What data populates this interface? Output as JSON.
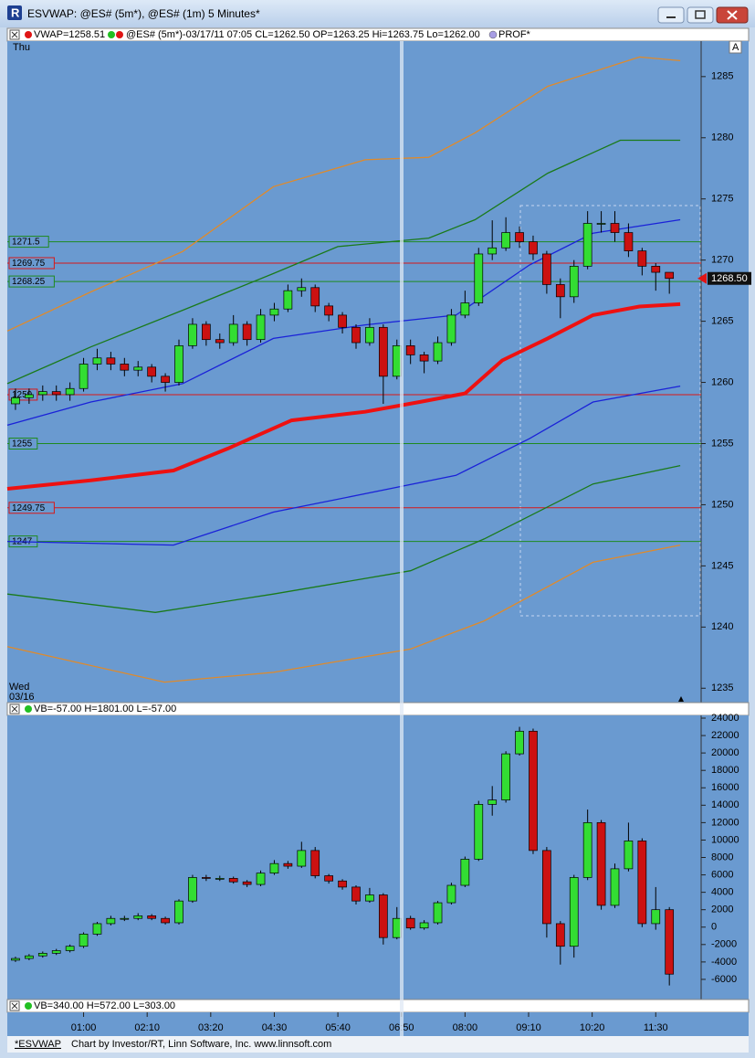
{
  "window": {
    "title": "ESVWAP: @ES# (5m*), @ES# (1m) 5 Minutes*"
  },
  "status_strip": "VB=340.00 H=572.00 L=303.00",
  "footer": {
    "study": "*ESVWAP",
    "credit": "Chart by Investor/RT, Linn Software, Inc. www.linnsoft.com"
  },
  "chart_data": [
    {
      "type": "candlestick",
      "legend": [
        "VWAP=1258.51",
        "@ES# (5m*)-03/17/11 07:05 CL=1262.50 OP=1263.25 Hi=1263.75 Lo=1262.00",
        "PROF*"
      ],
      "day_top": "Thu",
      "day_bottom": "Wed",
      "date_bottom": "03/16",
      "scale_mark": "A",
      "up_color": "#33dd33",
      "down_color": "#cc1111",
      "x": [
        -15,
        0,
        15,
        30,
        45,
        60,
        75,
        90,
        105,
        120,
        135,
        150,
        165,
        180,
        195,
        210,
        225,
        240,
        255,
        270,
        285,
        300,
        315,
        330,
        345,
        360,
        375,
        390,
        405,
        420,
        435,
        450,
        465,
        480,
        495,
        510,
        525,
        540,
        555,
        570,
        585,
        600,
        615,
        630,
        645,
        660,
        675,
        690,
        705
      ],
      "open": [
        1258.25,
        1258.75,
        1259,
        1259.25,
        1259,
        1259.5,
        1261.5,
        1262,
        1261.5,
        1261,
        1261.25,
        1260.5,
        1260,
        1263,
        1264.75,
        1263.5,
        1263.25,
        1264.75,
        1263.5,
        1265.5,
        1266,
        1267.5,
        1267.75,
        1266.25,
        1265.5,
        1264.5,
        1263.25,
        1264.5,
        1260.5,
        1263,
        1262.25,
        1261.75,
        1263.25,
        1265.5,
        1266.5,
        1270.5,
        1271,
        1272.25,
        1271.5,
        1270.5,
        1268,
        1267,
        1269.5,
        1273,
        1273,
        1272.25,
        1270.75,
        1269.5,
        1269
      ],
      "high": [
        1259.5,
        1259.5,
        1259.75,
        1259.75,
        1260,
        1262,
        1262.75,
        1262.5,
        1262,
        1261.75,
        1261.5,
        1260.75,
        1263.5,
        1265.25,
        1265,
        1264,
        1265.5,
        1265,
        1266,
        1266.5,
        1268,
        1268.5,
        1268,
        1266.5,
        1265.75,
        1264.75,
        1265.25,
        1264.75,
        1263.5,
        1263.5,
        1262.5,
        1263.75,
        1266,
        1267.5,
        1271,
        1273.25,
        1273.5,
        1272.75,
        1272,
        1270.75,
        1268.5,
        1270,
        1274,
        1274,
        1274,
        1273,
        1271,
        1269.75,
        1269
      ],
      "low": [
        1257.75,
        1258.25,
        1258.5,
        1258.5,
        1258.5,
        1259.25,
        1261,
        1261,
        1260.5,
        1260.5,
        1260,
        1259.25,
        1259.75,
        1262.75,
        1263,
        1262.75,
        1263,
        1263,
        1263.25,
        1265,
        1265.75,
        1267,
        1265.75,
        1265,
        1264,
        1262.75,
        1263,
        1258.25,
        1260.25,
        1261.5,
        1260.75,
        1261.5,
        1263,
        1265.25,
        1266.25,
        1270,
        1270.75,
        1271,
        1270,
        1267.25,
        1265.25,
        1266.5,
        1269.25,
        1272.25,
        1271.5,
        1270.25,
        1268.75,
        1267.5,
        1267.25
      ],
      "close": [
        1258.75,
        1259,
        1259.25,
        1259,
        1259.5,
        1261.5,
        1262,
        1261.5,
        1261,
        1261.25,
        1260.5,
        1260,
        1263,
        1264.75,
        1263.5,
        1263.25,
        1264.75,
        1263.5,
        1265.5,
        1266,
        1267.5,
        1267.75,
        1266.25,
        1265.5,
        1264.5,
        1263.25,
        1264.5,
        1260.5,
        1263,
        1262.25,
        1261.75,
        1263.25,
        1265.5,
        1266.5,
        1270.5,
        1271,
        1272.25,
        1271.5,
        1270.5,
        1268,
        1267,
        1269.5,
        1273,
        1273,
        1272.25,
        1270.75,
        1269.5,
        1269,
        1268.5
      ],
      "series": [
        {
          "color": "#e08a2a",
          "width": 1.3,
          "x": [
            -24,
            68,
            169,
            269,
            370,
            440,
            491,
            571,
            672,
            717
          ],
          "values": [
            1264.2,
            1267.4,
            1270.7,
            1276,
            1278.2,
            1278.4,
            1280.4,
            1284.2,
            1286.6,
            1286.3
          ]
        },
        {
          "color": "#1a7a1a",
          "width": 1.3,
          "x": [
            -24,
            68,
            169,
            269,
            340,
            440,
            491,
            571,
            651,
            717
          ],
          "values": [
            1259.9,
            1262.9,
            1265.9,
            1268.9,
            1271.1,
            1271.8,
            1273.3,
            1277.1,
            1279.8,
            1279.8
          ]
        },
        {
          "color": "#1a22d8",
          "width": 1.3,
          "x": [
            -24,
            68,
            169,
            269,
            370,
            470,
            551,
            621,
            717
          ],
          "values": [
            1256.5,
            1258.4,
            1259.9,
            1263.6,
            1264.7,
            1265.5,
            1269.6,
            1272.2,
            1273.3
          ]
        },
        {
          "color": "#ee1111",
          "width": 4,
          "x": [
            -24,
            68,
            159,
            219,
            289,
            370,
            430,
            480,
            521,
            571,
            621,
            672,
            717
          ],
          "values": [
            1251.3,
            1252,
            1252.8,
            1254.6,
            1256.9,
            1257.6,
            1258.4,
            1259.1,
            1261.8,
            1263.6,
            1265.5,
            1266.2,
            1266.4
          ]
        },
        {
          "color": "#1a22d8",
          "width": 1.3,
          "x": [
            -24,
            159,
            269,
            370,
            470,
            551,
            621,
            717
          ],
          "values": [
            1247,
            1246.7,
            1249.4,
            1250.9,
            1252.4,
            1255.4,
            1258.4,
            1259.7
          ]
        },
        {
          "color": "#1a7a1a",
          "width": 1.3,
          "x": [
            -24,
            139,
            269,
            420,
            501,
            621,
            717
          ],
          "values": [
            1242.7,
            1241.2,
            1242.7,
            1244.6,
            1247.2,
            1251.7,
            1253.2
          ]
        },
        {
          "color": "#e08a2a",
          "width": 1.3,
          "x": [
            -24,
            149,
            269,
            420,
            501,
            621,
            717
          ],
          "values": [
            1238.4,
            1235.5,
            1236.3,
            1238.2,
            1240.5,
            1245.3,
            1246.7
          ]
        }
      ],
      "levels": [
        {
          "value": 1271.5,
          "label": "1271.5",
          "color": "#1f8a1f"
        },
        {
          "value": 1269.75,
          "label": "1269.75",
          "color": "#d81818"
        },
        {
          "value": 1268.25,
          "label": "1268.25",
          "color": "#1f8a1f"
        },
        {
          "value": 1259,
          "label": "1259",
          "color": "#d81818"
        },
        {
          "value": 1255,
          "label": "1255",
          "color": "#1f8a1f"
        },
        {
          "value": 1249.75,
          "label": "1249.75",
          "color": "#d81818"
        },
        {
          "value": 1247,
          "label": "1247",
          "color": "#1f8a1f"
        }
      ],
      "last_price": {
        "value": 1268.5,
        "label": "1268.50"
      },
      "xlim": [
        -24,
        740
      ],
      "ylim": [
        1233.9,
        1287.9
      ],
      "yticks": [
        1235,
        1240,
        1245,
        1250,
        1255,
        1260,
        1265,
        1270,
        1275,
        1280,
        1285
      ]
    },
    {
      "type": "candlestick",
      "legend": [
        "VB=-57.00 H=1801.00 L=-57.00"
      ],
      "up_color": "#33dd33",
      "down_color": "#cc1111",
      "x": [
        -15,
        0,
        15,
        30,
        45,
        60,
        75,
        90,
        105,
        120,
        135,
        150,
        165,
        180,
        195,
        210,
        225,
        240,
        255,
        270,
        285,
        300,
        315,
        330,
        345,
        360,
        375,
        390,
        405,
        420,
        435,
        450,
        465,
        480,
        495,
        510,
        525,
        540,
        555,
        570,
        585,
        600,
        615,
        630,
        645,
        660,
        675,
        690,
        705
      ],
      "open": [
        -3800,
        -3600,
        -3300,
        -3000,
        -2700,
        -2200,
        -800,
        400,
        1000,
        1000,
        1300,
        1000,
        500,
        3000,
        5700,
        5600,
        5600,
        5200,
        4900,
        6200,
        7300,
        7000,
        8800,
        5900,
        5300,
        4600,
        3000,
        3700,
        -1200,
        1000,
        -100,
        500,
        2800,
        4800,
        7800,
        14100,
        14600,
        19900,
        22500,
        8800,
        400,
        -2200,
        5700,
        12000,
        2500,
        6700,
        9900,
        400,
        2000
      ],
      "high": [
        -3400,
        -3100,
        -2800,
        -2500,
        -2000,
        -600,
        600,
        1300,
        1300,
        1600,
        1500,
        1200,
        3200,
        6000,
        6000,
        5900,
        5800,
        5400,
        6500,
        7700,
        7600,
        9800,
        9200,
        6100,
        5500,
        4800,
        4500,
        3900,
        2300,
        1300,
        800,
        3000,
        5100,
        8100,
        14500,
        16200,
        20200,
        23000,
        22800,
        9200,
        700,
        6000,
        13500,
        12300,
        7300,
        12000,
        10200,
        4600,
        2300
      ],
      "low": [
        -4000,
        -3800,
        -3500,
        -3200,
        -2900,
        -2400,
        -1000,
        200,
        700,
        800,
        800,
        300,
        300,
        2800,
        5300,
        5300,
        5000,
        4600,
        4700,
        6000,
        6700,
        6800,
        5600,
        5000,
        4300,
        2600,
        2800,
        -2000,
        -1400,
        -300,
        -300,
        300,
        2600,
        4600,
        7600,
        12800,
        14300,
        19700,
        8400,
        -1200,
        -4300,
        -3500,
        5400,
        2000,
        2200,
        6400,
        0,
        -300,
        -6700
      ],
      "close": [
        -3600,
        -3300,
        -3000,
        -2700,
        -2200,
        -800,
        400,
        1000,
        1000,
        1300,
        1000,
        500,
        3000,
        5700,
        5600,
        5600,
        5200,
        4900,
        6200,
        7300,
        7000,
        8800,
        5900,
        5300,
        4600,
        3000,
        3700,
        -1200,
        1000,
        -100,
        500,
        2800,
        4800,
        7800,
        14100,
        14600,
        19900,
        22500,
        8800,
        400,
        -2200,
        5700,
        12000,
        2500,
        6700,
        9900,
        400,
        2000,
        -5400
      ],
      "xlim": [
        -24,
        740
      ],
      "ylim": [
        -8210,
        24316
      ],
      "yticks": [
        -6000,
        -4000,
        -2000,
        0,
        2000,
        4000,
        6000,
        8000,
        10000,
        12000,
        14000,
        16000,
        18000,
        20000,
        22000,
        24000
      ],
      "xticks": [
        {
          "value": 60,
          "label": "01:00"
        },
        {
          "value": 130,
          "label": "02:10"
        },
        {
          "value": 200,
          "label": "03:20"
        },
        {
          "value": 270,
          "label": "04:30"
        },
        {
          "value": 340,
          "label": "05:40"
        },
        {
          "value": 410,
          "label": "06:50"
        },
        {
          "value": 480,
          "label": "08:00"
        },
        {
          "value": 550,
          "label": "09:10"
        },
        {
          "value": 620,
          "label": "10:20"
        },
        {
          "value": 690,
          "label": "11:30"
        }
      ]
    }
  ]
}
